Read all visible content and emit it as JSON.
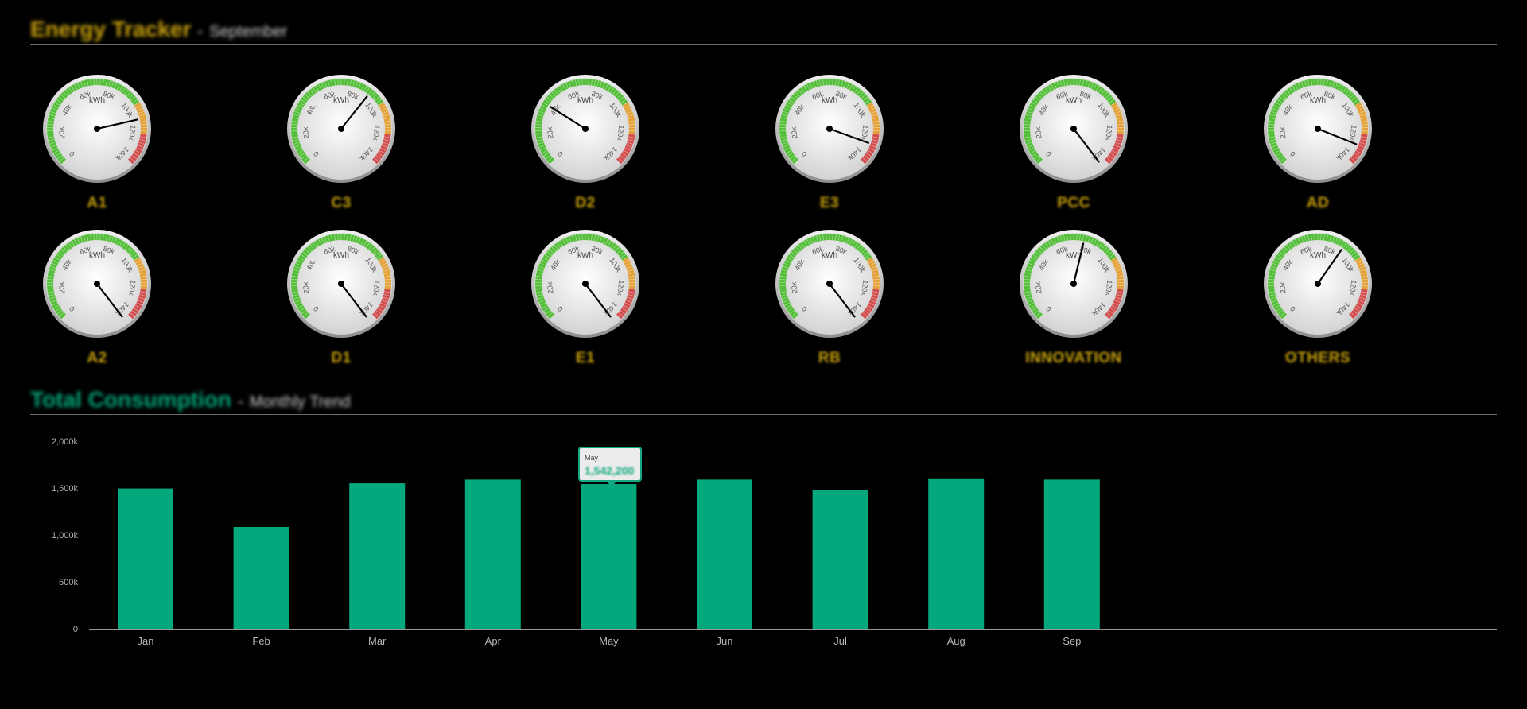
{
  "header": {
    "title": "Energy Tracker",
    "separator": "-",
    "subtitle": "September"
  },
  "gauges": {
    "unit": "kWh",
    "ticks": [
      "0",
      "20k",
      "40k",
      "60k",
      "80k",
      "100k",
      "120k",
      "140k"
    ],
    "max": 140000,
    "bands": [
      {
        "from": 0,
        "to": 100000,
        "color": "#55bf3b"
      },
      {
        "from": 100000,
        "to": 120000,
        "color": "#e3a23a"
      },
      {
        "from": 120000,
        "to": 140000,
        "color": "#d14f4f"
      }
    ],
    "items": [
      {
        "label": "A1",
        "value": 110000
      },
      {
        "label": "C3",
        "value": 90000
      },
      {
        "label": "D2",
        "value": 40000
      },
      {
        "label": "E3",
        "value": 127000
      },
      {
        "label": "PCC",
        "value": 144000
      },
      {
        "label": "AD",
        "value": 128000
      },
      {
        "label": "A2",
        "value": 144000
      },
      {
        "label": "D1",
        "value": 144000
      },
      {
        "label": "E1",
        "value": 144000
      },
      {
        "label": "RB",
        "value": 144000
      },
      {
        "label": "INNOVATION",
        "value": 77000
      },
      {
        "label": "OTHERS",
        "value": 88000
      }
    ]
  },
  "total": {
    "title": "Total Consumption",
    "separator": "-",
    "subtitle": "Monthly Trend"
  },
  "tooltip": {
    "month": "May",
    "value": "1,542,200"
  },
  "chart_data": {
    "type": "bar",
    "categories": [
      "Jan",
      "Feb",
      "Mar",
      "Apr",
      "May",
      "Jun",
      "Jul",
      "Aug",
      "Sep"
    ],
    "values": [
      1495000,
      1085000,
      1550000,
      1590000,
      1542200,
      1590000,
      1475000,
      1595000,
      1590000
    ],
    "ylim": [
      0,
      2000000
    ],
    "yticks": [
      "0",
      "500k",
      "1,000k",
      "1,500k",
      "2,000k"
    ],
    "color": "#03a97c",
    "grid": false
  }
}
